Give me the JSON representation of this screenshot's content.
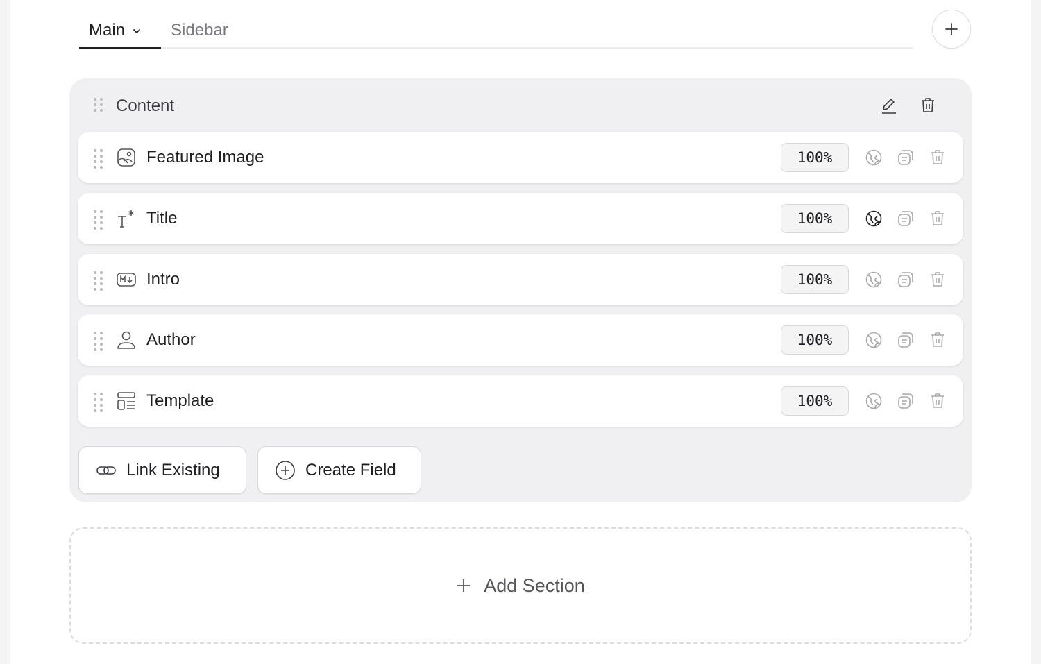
{
  "tabs": [
    {
      "label": "Main",
      "active": true
    },
    {
      "label": "Sidebar",
      "active": false
    }
  ],
  "section": {
    "title": "Content",
    "fields": [
      {
        "label": "Featured Image",
        "icon": "image-icon",
        "width": "100%",
        "translatable_active": false
      },
      {
        "label": "Title",
        "icon": "text-icon",
        "width": "100%",
        "translatable_active": true
      },
      {
        "label": "Intro",
        "icon": "markdown-icon",
        "width": "100%",
        "translatable_active": false
      },
      {
        "label": "Author",
        "icon": "user-icon",
        "width": "100%",
        "translatable_active": false
      },
      {
        "label": "Template",
        "icon": "layout-icon",
        "width": "100%",
        "translatable_active": false
      }
    ],
    "link_existing": "Link Existing",
    "create_field": "Create Field"
  },
  "add_section": "Add Section",
  "colors": {
    "section_bg": "#f0f0f2",
    "active_icon": "#1f1f23",
    "muted_icon": "#a8a8ae"
  }
}
